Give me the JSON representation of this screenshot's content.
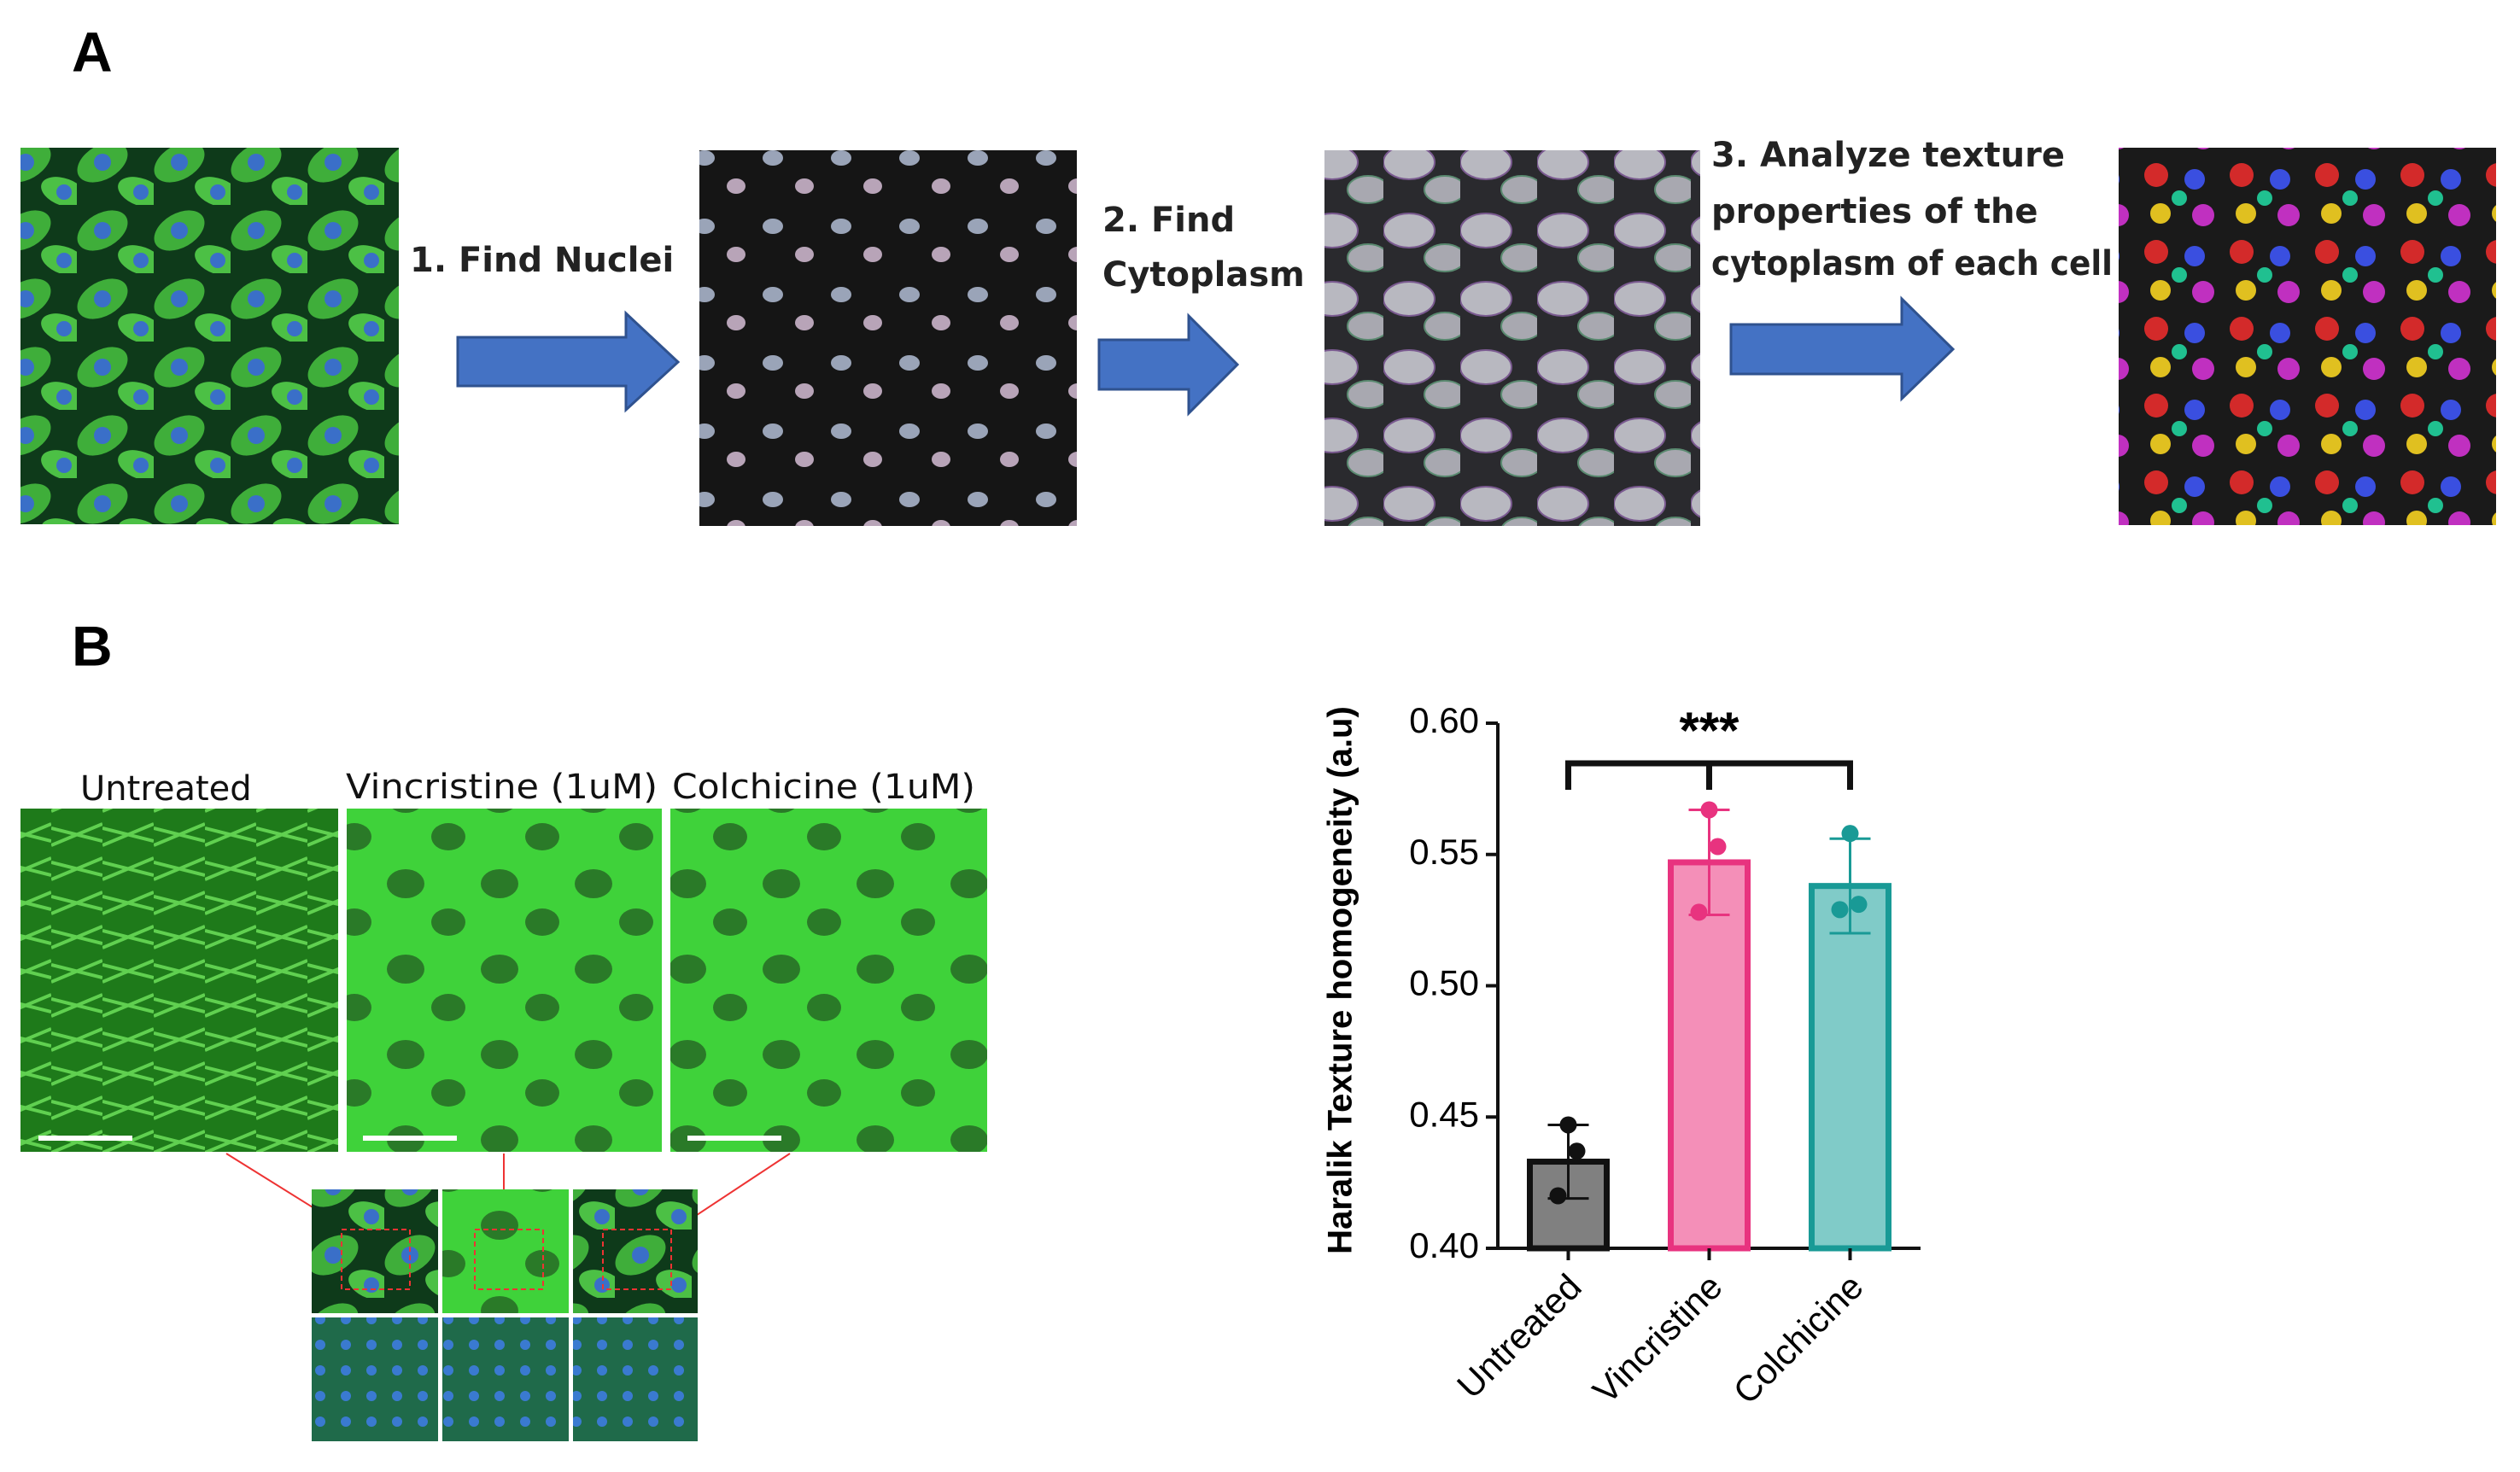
{
  "panel_a": {
    "label": "A",
    "steps": [
      [
        "1. Find Nuclei"
      ],
      [
        "2. Find",
        "Cytoplasm"
      ],
      [
        "3. Analyze texture",
        "properties of the",
        "cytoplasm of each cell"
      ]
    ]
  },
  "panel_b": {
    "label": "B",
    "image_labels": [
      "Untreated",
      "Vincristine (1uM)",
      "Colchicine (1uM)"
    ]
  },
  "chart_data": {
    "type": "bar",
    "ylabel": "Haralik Texture homogeneity (a.u)",
    "categories": [
      "Untreated",
      "Vincristine",
      "Colchicine"
    ],
    "values": [
      0.433,
      0.547,
      0.538
    ],
    "errors": [
      0.014,
      0.02,
      0.018
    ],
    "points": [
      [
        0.447,
        0.437,
        0.42
      ],
      [
        0.567,
        0.553,
        0.528
      ],
      [
        0.558,
        0.531,
        0.529
      ]
    ],
    "colors": [
      "#808080",
      "#f48fb8",
      "#80cbc8"
    ],
    "edge_colors": [
      "#111111",
      "#e8337f",
      "#199a96"
    ],
    "point_colors": [
      "#111111",
      "#e8337f",
      "#199a96"
    ],
    "ylim": [
      0.4,
      0.6
    ],
    "yticks": [
      {
        "value": 0.4,
        "label": "0.40"
      },
      0.45,
      {
        "value": 0.5,
        "label": "0.50"
      },
      0.55,
      {
        "value": 0.6,
        "label": "0.60"
      }
    ],
    "annotation": "***"
  }
}
